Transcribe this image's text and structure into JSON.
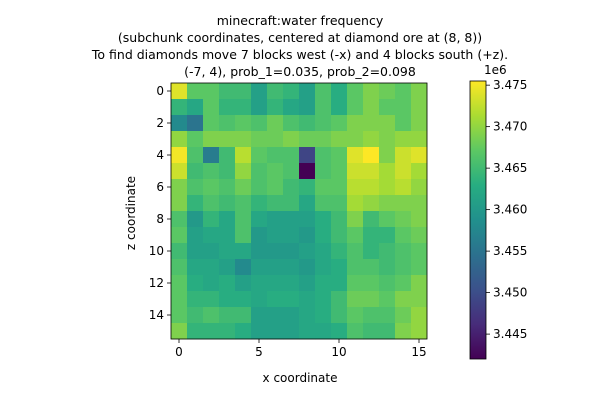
{
  "chart_data": {
    "type": "heatmap",
    "title_lines": [
      "minecraft:water frequency",
      "(subchunk coordinates, centered at diamond ore at (8, 8))",
      "To find diamonds move 7 blocks west (-x) and 4 blocks south (+z).",
      "(-7, 4), prob_1=0.035, prob_2=0.098"
    ],
    "xlabel": "x coordinate",
    "ylabel": "z coordinate",
    "x_ticks": [
      0,
      5,
      10,
      15
    ],
    "y_ticks": [
      0,
      2,
      4,
      6,
      8,
      10,
      12,
      14
    ],
    "colorbar": {
      "min": 3.442,
      "max": 3.4755,
      "ticks": [
        "3.445",
        "3.450",
        "3.455",
        "3.460",
        "3.465",
        "3.470",
        "3.475"
      ],
      "tick_values": [
        3.445,
        3.45,
        3.455,
        3.46,
        3.465,
        3.47,
        3.475
      ],
      "offset_label": "1e6",
      "colormap": "viridis"
    },
    "values_unit": "x1e6",
    "grid": [
      [
        3.474,
        3.467,
        3.467,
        3.465,
        3.465,
        3.461,
        3.465,
        3.464,
        3.461,
        3.466,
        3.463,
        3.467,
        3.469,
        3.468,
        3.467,
        3.469
      ],
      [
        3.464,
        3.462,
        3.467,
        3.464,
        3.464,
        3.461,
        3.464,
        3.462,
        3.461,
        3.466,
        3.463,
        3.467,
        3.469,
        3.467,
        3.467,
        3.469
      ],
      [
        3.458,
        3.455,
        3.467,
        3.466,
        3.467,
        3.466,
        3.468,
        3.466,
        3.465,
        3.466,
        3.467,
        3.469,
        3.469,
        3.469,
        3.467,
        3.469
      ],
      [
        3.47,
        3.467,
        3.469,
        3.469,
        3.469,
        3.468,
        3.468,
        3.469,
        3.468,
        3.468,
        3.469,
        3.469,
        3.47,
        3.469,
        3.47,
        3.47
      ],
      [
        3.475,
        3.466,
        3.456,
        3.465,
        3.472,
        3.467,
        3.466,
        3.466,
        3.449,
        3.466,
        3.467,
        3.474,
        3.476,
        3.469,
        3.473,
        3.474
      ],
      [
        3.473,
        3.465,
        3.466,
        3.465,
        3.47,
        3.466,
        3.467,
        3.466,
        3.442,
        3.466,
        3.467,
        3.473,
        3.473,
        3.471,
        3.473,
        3.471
      ],
      [
        3.469,
        3.466,
        3.467,
        3.466,
        3.468,
        3.466,
        3.467,
        3.465,
        3.464,
        3.467,
        3.467,
        3.472,
        3.472,
        3.471,
        3.472,
        3.47
      ],
      [
        3.469,
        3.464,
        3.466,
        3.465,
        3.466,
        3.464,
        3.465,
        3.465,
        3.462,
        3.466,
        3.466,
        3.471,
        3.47,
        3.469,
        3.469,
        3.469
      ],
      [
        3.466,
        3.46,
        3.464,
        3.462,
        3.466,
        3.462,
        3.461,
        3.461,
        3.461,
        3.463,
        3.465,
        3.469,
        3.465,
        3.467,
        3.468,
        3.469
      ],
      [
        3.467,
        3.461,
        3.462,
        3.462,
        3.466,
        3.46,
        3.461,
        3.461,
        3.46,
        3.463,
        3.465,
        3.467,
        3.464,
        3.464,
        3.467,
        3.468
      ],
      [
        3.465,
        3.461,
        3.461,
        3.462,
        3.462,
        3.46,
        3.46,
        3.46,
        3.461,
        3.462,
        3.464,
        3.466,
        3.464,
        3.465,
        3.466,
        3.467
      ],
      [
        3.466,
        3.462,
        3.462,
        3.461,
        3.458,
        3.461,
        3.461,
        3.461,
        3.46,
        3.462,
        3.463,
        3.466,
        3.466,
        3.465,
        3.466,
        3.467
      ],
      [
        3.467,
        3.463,
        3.462,
        3.463,
        3.461,
        3.462,
        3.462,
        3.462,
        3.461,
        3.463,
        3.463,
        3.467,
        3.467,
        3.466,
        3.467,
        3.469
      ],
      [
        3.467,
        3.464,
        3.464,
        3.463,
        3.463,
        3.462,
        3.463,
        3.463,
        3.462,
        3.463,
        3.465,
        3.468,
        3.468,
        3.467,
        3.469,
        3.469
      ],
      [
        3.467,
        3.465,
        3.466,
        3.465,
        3.465,
        3.461,
        3.461,
        3.461,
        3.462,
        3.463,
        3.465,
        3.467,
        3.466,
        3.466,
        3.468,
        3.47
      ],
      [
        3.469,
        3.464,
        3.464,
        3.464,
        3.463,
        3.461,
        3.461,
        3.461,
        3.462,
        3.462,
        3.463,
        3.466,
        3.465,
        3.465,
        3.469,
        3.47
      ]
    ]
  }
}
